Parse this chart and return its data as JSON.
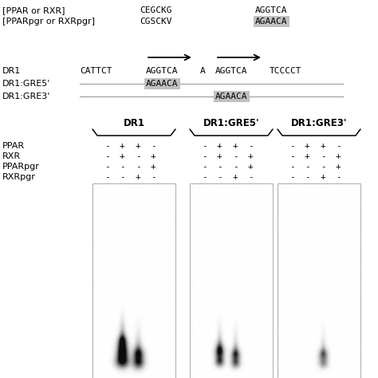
{
  "bg_color": "#ffffff",
  "text_color": "#000000",
  "highlight_color": "#c0c0c0",
  "line_color": "#999999",
  "top_labels": {
    "ppar_rxr": "[PPAR or RXR]",
    "pparpgr_rxrpgr": "[PPARpgr or RXRpgr]",
    "cegckg": "CEGCKG",
    "cgsckv": "CGSCKV",
    "aggtca_top": "AGGTCA",
    "agaaca_top": "AGAACA"
  },
  "dr1_seq": {
    "label": "DR1",
    "cattct": "CATTCT",
    "aggtca1": "AGGTCA",
    "spacer": "A",
    "aggtca2": "AGGTCA",
    "tcccct": "TCCCCT"
  },
  "gre5_seq": {
    "label": "DR1:GRE5'",
    "agaaca": "AGAACA"
  },
  "gre3_seq": {
    "label": "DR1:GRE3'",
    "agaaca": "AGAACA"
  },
  "gel_columns": [
    "DR1",
    "DR1:GRE5'",
    "DR1:GRE3'"
  ],
  "gel_rows": [
    "PPAR",
    "RXR",
    "PPARpgr",
    "RXRpgr"
  ],
  "gel_data": {
    "PPAR": [
      "-",
      "+",
      "+",
      "-",
      "-",
      "+",
      "+",
      "-",
      "-",
      "+",
      "+",
      "-"
    ],
    "RXR": [
      "-",
      "+",
      "-",
      "+",
      "-",
      "+",
      "-",
      "+",
      "-",
      "+",
      "-",
      "+"
    ],
    "PPARpgr": [
      "-",
      "-",
      "-",
      "+",
      "-",
      "-",
      "-",
      "+",
      "-",
      "-",
      "-",
      "+"
    ],
    "RXRpgr": [
      "-",
      "-",
      "+",
      "-",
      "-",
      "-",
      "+",
      "-",
      "-",
      "-",
      "+",
      "-"
    ]
  }
}
